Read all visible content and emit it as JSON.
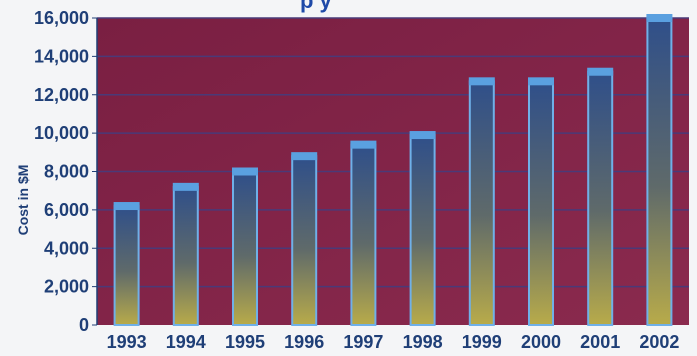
{
  "chart_data": {
    "type": "bar",
    "title_fragment": "p y",
    "ylabel": "Cost in $M",
    "xlabel": "",
    "categories": [
      "1993",
      "1994",
      "1995",
      "1996",
      "1997",
      "1998",
      "1999",
      "2000",
      "2001",
      "2002"
    ],
    "values": [
      6200,
      7200,
      8000,
      8800,
      9400,
      9900,
      12700,
      12700,
      13200,
      16000
    ],
    "ylim": [
      0,
      16000
    ],
    "yticks": [
      0,
      2000,
      4000,
      6000,
      8000,
      10000,
      12000,
      14000,
      16000
    ],
    "ytick_labels": [
      "0",
      "2,000",
      "4,000",
      "6,000",
      "8,000",
      "10,000",
      "12,000",
      "14,000",
      "16,000"
    ],
    "grid": true,
    "legend": "none",
    "colors": {
      "plot_background": "#7a1f42",
      "gridline": "#4a3a78",
      "bar_top": "#2f4f8a",
      "bar_bottom": "#b8ab4a",
      "bar_cap": "#5aa0e0",
      "bar_edge": "#6fb0e8",
      "axis_text": "#1f3f77"
    }
  }
}
